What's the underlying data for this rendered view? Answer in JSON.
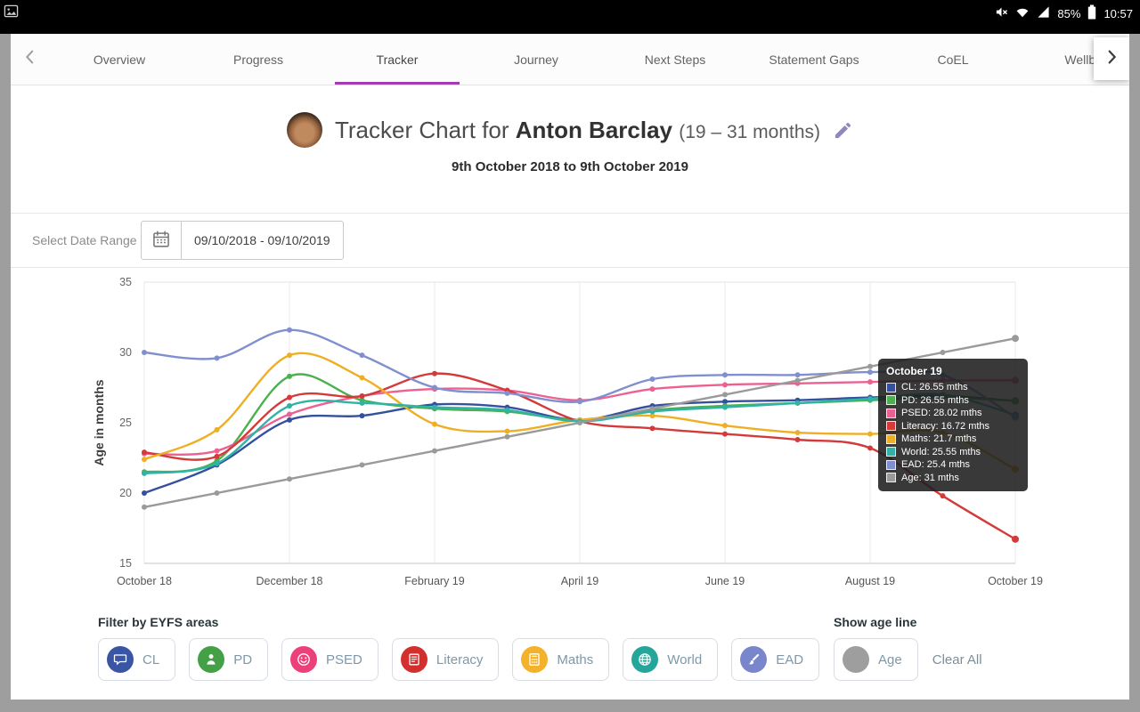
{
  "theme": {
    "accent": "#a23cb0",
    "page_bg": "#9e9e9e",
    "card_bg": "#ffffff"
  },
  "status_bar": {
    "time": "10:57",
    "battery_percent": "85%"
  },
  "tab_bar": {
    "active": "Tracker",
    "tabs": [
      "Overview",
      "Progress",
      "Tracker",
      "Journey",
      "Next Steps",
      "Statement Gaps",
      "CoEL",
      "Wellbeing"
    ]
  },
  "header": {
    "title_prefix": "Tracker Chart for",
    "child_name": "Anton Barclay",
    "age_range": "(19 – 31 months)",
    "subtitle": "9th October 2018 to 9th October 2019"
  },
  "date_filter": {
    "label": "Select Date Range",
    "value": "09/10/2018 - 09/10/2019"
  },
  "chart_data": {
    "type": "line",
    "title": "Tracker Chart for Anton Barclay",
    "xlabel": "",
    "ylabel": "Age in months",
    "ylim": [
      15,
      35
    ],
    "y_ticks": [
      15,
      20,
      25,
      30,
      35
    ],
    "x_tick_labels": [
      "October 18",
      "December 18",
      "February 19",
      "April 19",
      "June 19",
      "August 19",
      "October 19"
    ],
    "x_points": [
      "Oct 18",
      "Nov 18",
      "Dec 18",
      "Jan 19",
      "Feb 19",
      "Mar 19",
      "Apr 19",
      "May 19",
      "Jun 19",
      "Jul 19",
      "Aug 19",
      "Sep 19",
      "Oct 19"
    ],
    "legend_position": "none",
    "grid": "vertical",
    "series": [
      {
        "name": "CL",
        "color": "#34509e",
        "values": [
          20.0,
          22.0,
          25.2,
          25.5,
          26.3,
          26.1,
          25.2,
          26.2,
          26.5,
          26.6,
          26.8,
          26.9,
          26.55
        ]
      },
      {
        "name": "PD",
        "color": "#4caf50",
        "values": [
          21.5,
          22.3,
          28.3,
          26.6,
          26.0,
          25.8,
          25.2,
          25.9,
          26.2,
          26.4,
          26.6,
          26.8,
          26.55
        ]
      },
      {
        "name": "PSED",
        "color": "#ec6191",
        "values": [
          22.8,
          23.0,
          25.6,
          26.9,
          27.4,
          27.3,
          26.6,
          27.4,
          27.7,
          27.8,
          27.9,
          28.0,
          28.02
        ]
      },
      {
        "name": "Literacy",
        "color": "#d43a3a",
        "values": [
          22.9,
          22.6,
          26.8,
          26.9,
          28.5,
          27.3,
          25.1,
          24.6,
          24.2,
          23.8,
          23.2,
          19.8,
          16.72
        ]
      },
      {
        "name": "Maths",
        "color": "#efaf24",
        "values": [
          22.4,
          24.5,
          29.8,
          28.2,
          24.9,
          24.4,
          25.2,
          25.5,
          24.8,
          24.3,
          24.2,
          24.3,
          21.7
        ]
      },
      {
        "name": "World",
        "color": "#2fb3a6",
        "values": [
          21.4,
          22.1,
          26.2,
          26.4,
          26.1,
          25.9,
          25.1,
          25.8,
          26.1,
          26.4,
          26.7,
          27.0,
          25.55
        ]
      },
      {
        "name": "EAD",
        "color": "#8090ce",
        "values": [
          30.0,
          29.6,
          31.6,
          29.8,
          27.5,
          27.1,
          26.5,
          28.1,
          28.4,
          28.4,
          28.6,
          28.4,
          25.4
        ]
      },
      {
        "name": "Age",
        "color": "#9a9a9a",
        "values": [
          19,
          20,
          21,
          22,
          23,
          24,
          25,
          26,
          27,
          28,
          29,
          30,
          31
        ]
      }
    ]
  },
  "tooltip": {
    "title": "October 19",
    "rows": [
      {
        "label": "CL",
        "value": "26.55 mths"
      },
      {
        "label": "PD",
        "value": "26.55 mths"
      },
      {
        "label": "PSED",
        "value": "28.02 mths"
      },
      {
        "label": "Literacy",
        "value": "16.72 mths"
      },
      {
        "label": "Maths",
        "value": "21.7 mths"
      },
      {
        "label": "World",
        "value": "25.55 mths"
      },
      {
        "label": "EAD",
        "value": "25.4 mths"
      },
      {
        "label": "Age",
        "value": "31 mths"
      }
    ]
  },
  "filters": {
    "title": "Filter by EYFS areas",
    "age_title": "Show age line",
    "clear_label": "Clear All",
    "areas": [
      {
        "label": "CL",
        "icon": "chat-icon",
        "color": "#3b55a5"
      },
      {
        "label": "PD",
        "icon": "person-icon",
        "color": "#43a047"
      },
      {
        "label": "PSED",
        "icon": "smiley-icon",
        "color": "#ec407a"
      },
      {
        "label": "Literacy",
        "icon": "book-icon",
        "color": "#d32f2f"
      },
      {
        "label": "Maths",
        "icon": "calculator-icon",
        "color": "#f3b229"
      },
      {
        "label": "World",
        "icon": "globe-icon",
        "color": "#26a69a"
      },
      {
        "label": "EAD",
        "icon": "paintbrush-icon",
        "color": "#7986cb"
      }
    ],
    "age": {
      "label": "Age",
      "icon": "circle-icon",
      "color": "#9e9e9e"
    }
  }
}
